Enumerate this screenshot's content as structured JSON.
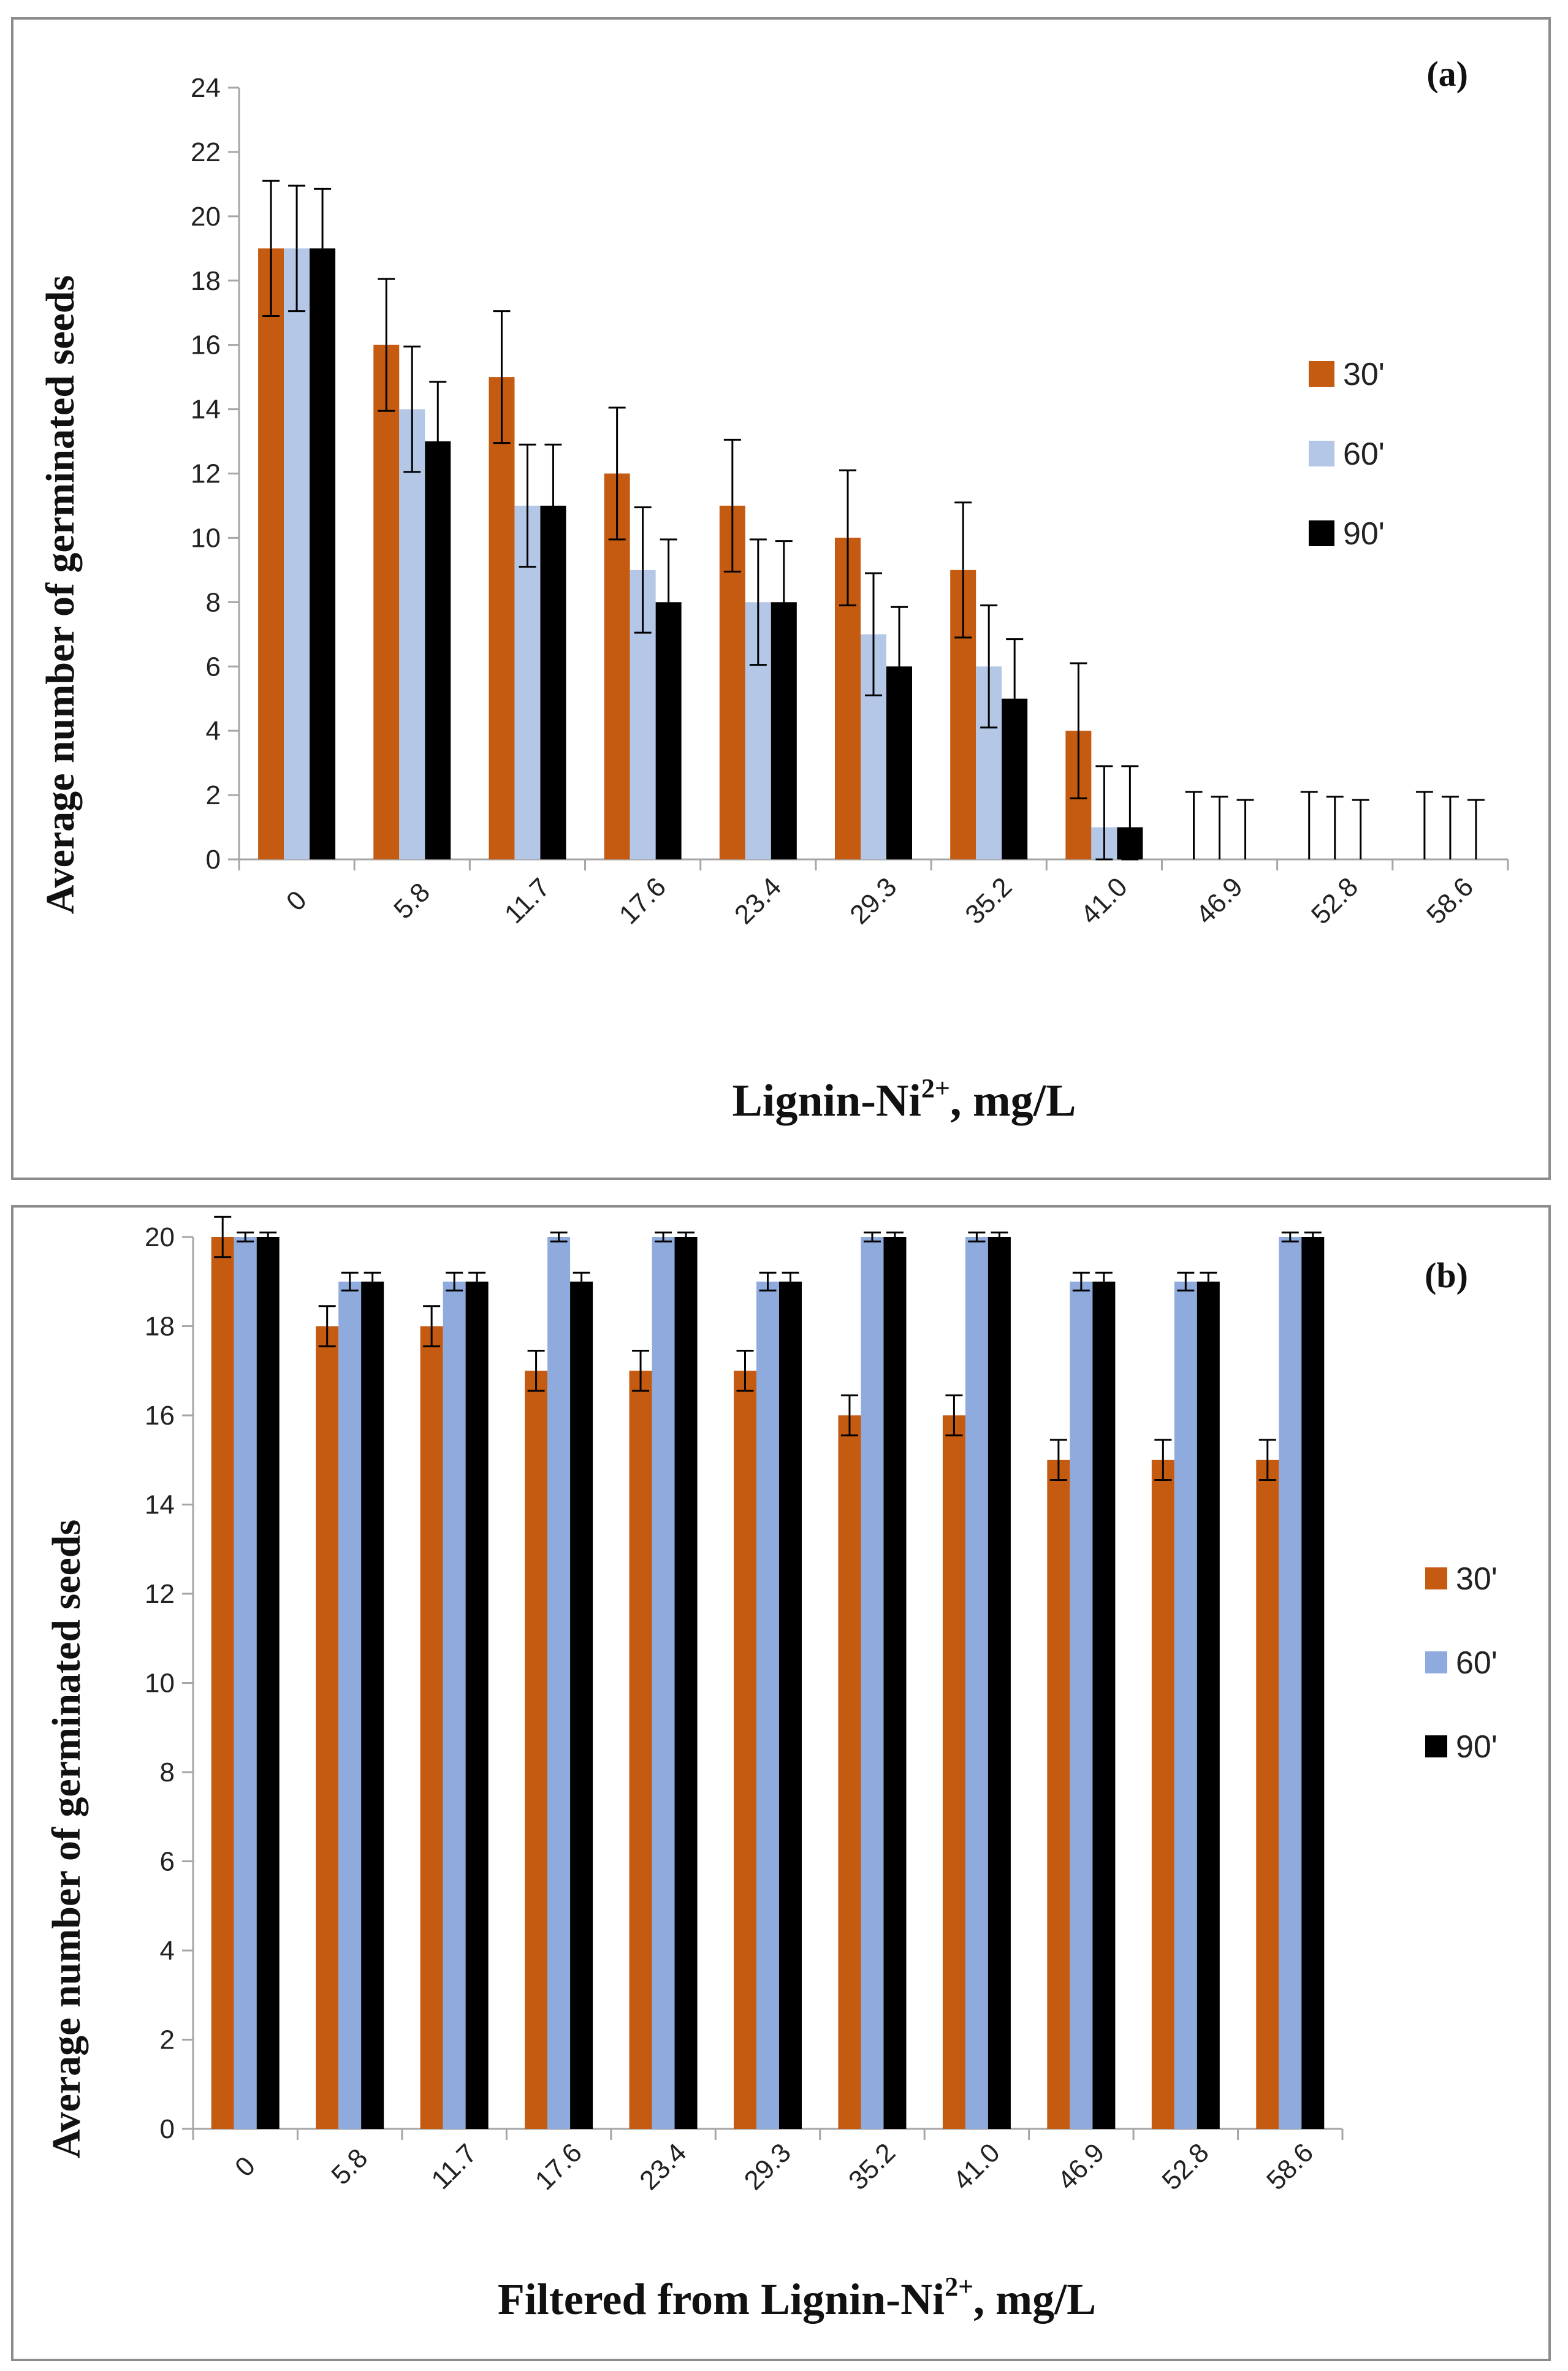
{
  "chart_data": [
    {
      "type": "bar",
      "panel_label": "(a)",
      "title": "",
      "ylabel": "Average number of germinated seeds",
      "xlabel": "Lignin-Ni",
      "xlabel_sup": "2+",
      "xlabel_suffix": ", mg/L",
      "ylim": [
        0,
        24
      ],
      "yticks": [
        "0",
        "2",
        "4",
        "6",
        "8",
        "10",
        "12",
        "14",
        "16",
        "18",
        "20",
        "22",
        "24"
      ],
      "categories": [
        "0",
        "5.8",
        "11.7",
        "17.6",
        "23.4",
        "29.3",
        "35.2",
        "41.0",
        "46.9",
        "52.8",
        "58.6"
      ],
      "legend_position": "right",
      "series": [
        {
          "name": "30'",
          "color": "#c55a11",
          "values": [
            19,
            16,
            15,
            12,
            11,
            10,
            9,
            4,
            0,
            0,
            0
          ],
          "errors": [
            2.1,
            2.05,
            2.05,
            2.05,
            2.05,
            2.1,
            2.1,
            2.1,
            2.1,
            2.1,
            2.1
          ]
        },
        {
          "name": "60'",
          "color": "#b4c7e7",
          "values": [
            19,
            14,
            11,
            9,
            8,
            7,
            6,
            1,
            0,
            0,
            0
          ],
          "errors": [
            1.95,
            1.95,
            1.9,
            1.95,
            1.95,
            1.9,
            1.9,
            1.9,
            1.95,
            1.95,
            1.95
          ]
        },
        {
          "name": "90'",
          "color": "#000000",
          "values": [
            19,
            13,
            11,
            8,
            8,
            6,
            5,
            1,
            0,
            0,
            0
          ],
          "errors": [
            1.85,
            1.85,
            1.9,
            1.95,
            1.9,
            1.85,
            1.85,
            1.9,
            1.85,
            1.85,
            1.85
          ]
        }
      ]
    },
    {
      "type": "bar",
      "panel_label": "(b)",
      "title": "",
      "ylabel": "Average number of germinated seeds",
      "xlabel": "Filtered from Lignin-Ni",
      "xlabel_sup": "2+",
      "xlabel_suffix": ", mg/L",
      "ylim": [
        0,
        20
      ],
      "yticks": [
        "0",
        "2",
        "4",
        "6",
        "8",
        "10",
        "12",
        "14",
        "16",
        "18",
        "20"
      ],
      "categories": [
        "0",
        "5.8",
        "11.7",
        "17.6",
        "23.4",
        "29.3",
        "35.2",
        "41.0",
        "46.9",
        "52.8",
        "58.6"
      ],
      "legend_position": "right",
      "series": [
        {
          "name": "30'",
          "color": "#c55a11",
          "values": [
            20,
            18,
            18,
            17,
            17,
            17,
            16,
            16,
            15,
            15,
            15
          ],
          "errors": [
            0.45,
            0.45,
            0.45,
            0.45,
            0.45,
            0.45,
            0.45,
            0.45,
            0.45,
            0.45,
            0.45
          ]
        },
        {
          "name": "60'",
          "color": "#8faadc",
          "values": [
            20,
            19,
            19,
            20,
            20,
            19,
            20,
            20,
            19,
            19,
            20
          ],
          "errors": [
            0.1,
            0.2,
            0.2,
            0.1,
            0.1,
            0.2,
            0.1,
            0.1,
            0.2,
            0.2,
            0.1
          ]
        },
        {
          "name": "90'",
          "color": "#000000",
          "values": [
            20,
            19,
            19,
            19,
            20,
            19,
            20,
            20,
            19,
            19,
            20
          ],
          "errors": [
            0.1,
            0.2,
            0.2,
            0.2,
            0.1,
            0.2,
            0.1,
            0.1,
            0.2,
            0.2,
            0.1
          ]
        }
      ]
    }
  ]
}
